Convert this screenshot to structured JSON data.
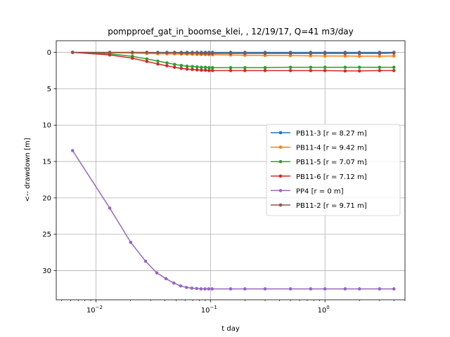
{
  "chart_data": {
    "type": "line",
    "title": "pompproef_gat_in_boomse_klei, , 12/19/17, Q=41 m3/day",
    "xlabel": "t day",
    "ylabel": "<-- drawdown [m]",
    "x_scale": "log",
    "xlim": [
      0.0045,
      5.0
    ],
    "ylim": [
      34.0,
      -1.6
    ],
    "y_inverted": true,
    "grid": true,
    "legend_position": "center-right",
    "x_ticks": [
      {
        "value": 0.01,
        "base": "10",
        "exp": "−2"
      },
      {
        "value": 0.1,
        "base": "10",
        "exp": "−1"
      },
      {
        "value": 1,
        "base": "10",
        "exp": "0"
      }
    ],
    "y_ticks": [
      0,
      5,
      10,
      15,
      20,
      25,
      30
    ],
    "series": [
      {
        "name": "PB11-3 [r = 8.27 m]",
        "color": "#1f77b4",
        "x": [
          0.00625,
          0.0132,
          0.0208,
          0.0278,
          0.0347,
          0.0417,
          0.0486,
          0.0556,
          0.0625,
          0.0694,
          0.0764,
          0.0833,
          0.0903,
          0.0972,
          0.1042,
          0.15,
          0.2,
          0.3,
          0.5,
          0.75,
          1.0,
          1.5,
          2.0,
          3.0,
          4.0
        ],
        "y": [
          0.0,
          0.0,
          0.0,
          0.0,
          0.0,
          0.0,
          0.0,
          0.0,
          0.0,
          0.0,
          0.0,
          0.0,
          0.0,
          0.0,
          0.0,
          0.0,
          0.0,
          0.0,
          0.0,
          0.0,
          0.0,
          0.0,
          0.0,
          0.0,
          0.0
        ]
      },
      {
        "name": "PB11-4 [r = 9.42 m]",
        "color": "#ff7f0e",
        "x": [
          0.00625,
          0.0132,
          0.0208,
          0.0278,
          0.0347,
          0.0417,
          0.0486,
          0.0556,
          0.0625,
          0.0694,
          0.0764,
          0.0833,
          0.0903,
          0.0972,
          0.1042,
          0.15,
          0.2,
          0.3,
          0.5,
          0.75,
          1.0,
          1.5,
          2.0,
          3.0,
          4.0
        ],
        "y": [
          0.0,
          0.05,
          0.1,
          0.15,
          0.18,
          0.2,
          0.22,
          0.24,
          0.25,
          0.27,
          0.28,
          0.3,
          0.3,
          0.32,
          0.33,
          0.36,
          0.4,
          0.42,
          0.45,
          0.48,
          0.5,
          0.5,
          0.52,
          0.52,
          0.5
        ]
      },
      {
        "name": "PB11-5 [r = 7.07 m]",
        "color": "#2ca02c",
        "x": [
          0.00625,
          0.0132,
          0.0208,
          0.0278,
          0.0347,
          0.0417,
          0.0486,
          0.0556,
          0.0625,
          0.0694,
          0.0764,
          0.0833,
          0.0903,
          0.0972,
          0.1042,
          0.15,
          0.2,
          0.3,
          0.5,
          0.75,
          1.0,
          1.5,
          2.0,
          3.0,
          4.0
        ],
        "y": [
          0.0,
          0.2,
          0.55,
          0.9,
          1.2,
          1.45,
          1.65,
          1.8,
          1.9,
          1.95,
          2.0,
          2.05,
          2.05,
          2.1,
          2.1,
          2.1,
          2.1,
          2.1,
          2.05,
          2.05,
          2.05,
          2.05,
          2.05,
          2.05,
          2.05
        ]
      },
      {
        "name": "PB11-6 [r = 7.12 m]",
        "color": "#d62728",
        "x": [
          0.00625,
          0.0132,
          0.0208,
          0.0278,
          0.0347,
          0.0417,
          0.0486,
          0.0556,
          0.0625,
          0.0694,
          0.0764,
          0.0833,
          0.0903,
          0.0972,
          0.1042,
          0.15,
          0.2,
          0.3,
          0.5,
          0.75,
          1.0,
          1.5,
          2.0,
          3.0,
          4.0
        ],
        "y": [
          0.0,
          0.35,
          0.8,
          1.25,
          1.6,
          1.85,
          2.05,
          2.2,
          2.3,
          2.35,
          2.4,
          2.45,
          2.45,
          2.5,
          2.5,
          2.5,
          2.5,
          2.5,
          2.5,
          2.5,
          2.5,
          2.55,
          2.55,
          2.5,
          2.5
        ]
      },
      {
        "name": "PP4 [r = 0 m]",
        "color": "#9467bd",
        "x": [
          0.00625,
          0.0132,
          0.0201,
          0.0271,
          0.034,
          0.0409,
          0.0479,
          0.0549,
          0.0618,
          0.0688,
          0.0757,
          0.0826,
          0.0896,
          0.0965,
          0.1035,
          0.15,
          0.2,
          0.3,
          0.5,
          0.75,
          1.0,
          1.5,
          2.0,
          3.0,
          4.0
        ],
        "y": [
          13.5,
          21.4,
          26.1,
          28.7,
          30.3,
          31.1,
          31.7,
          32.1,
          32.3,
          32.4,
          32.45,
          32.5,
          32.5,
          32.5,
          32.5,
          32.5,
          32.5,
          32.5,
          32.5,
          32.5,
          32.5,
          32.5,
          32.5,
          32.5,
          32.5
        ]
      },
      {
        "name": "PB11-2 [r = 9.71 m]",
        "color": "#8c564b",
        "x": [
          0.00625,
          0.0132,
          0.0208,
          0.0278,
          0.0347,
          0.0417,
          0.0486,
          0.0556,
          0.0625,
          0.0694,
          0.0764,
          0.0833,
          0.0903,
          0.0972,
          0.1042,
          0.15,
          0.2,
          0.3,
          0.5,
          0.75,
          1.0,
          1.5,
          2.0,
          3.0,
          4.0
        ],
        "y": [
          0.0,
          0.0,
          0.0,
          0.0,
          0.05,
          0.05,
          0.05,
          0.1,
          0.1,
          0.1,
          0.1,
          0.15,
          0.15,
          0.15,
          0.15,
          0.15,
          0.15,
          0.15,
          0.15,
          0.15,
          0.15,
          0.15,
          0.15,
          0.15,
          0.1
        ]
      }
    ]
  }
}
